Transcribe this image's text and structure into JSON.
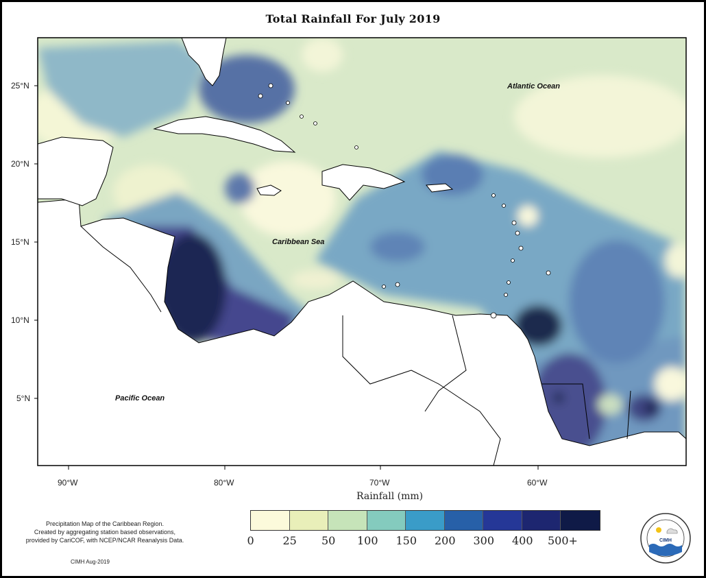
{
  "title": "Total Rainfall For July 2019",
  "axes": {
    "y_labels": [
      "25°N",
      "20°N",
      "15°N",
      "10°N",
      "5°N"
    ],
    "x_labels": [
      "90°W",
      "80°W",
      "70°W",
      "60°W"
    ]
  },
  "map_labels": {
    "atlantic": "Atlantic Ocean",
    "caribbean": "Caribbean Sea",
    "pacific": "Pacific Ocean"
  },
  "legend": {
    "title": "Rainfall (mm)",
    "colors": [
      "#fcfadb",
      "#e9efb9",
      "#c6e4b9",
      "#84cbbe",
      "#3a9cc8",
      "#2760a8",
      "#253797",
      "#1d2670",
      "#0f1a47"
    ],
    "ticks": [
      "0",
      "25",
      "50",
      "100",
      "150",
      "200",
      "300",
      "400",
      "500+"
    ]
  },
  "note": {
    "line1": "Precipitation Map of the Caribbean Region.",
    "line2": "Created by aggregating station based observations,",
    "line3": "provided by CariCOF, with NCEP/NCAR Reanalysis Data."
  },
  "credit": "CIMH Aug-2019",
  "logo": {
    "text": "CIMH",
    "ring_text": "Caribbean Institute for Meteorology and Hydrology"
  }
}
